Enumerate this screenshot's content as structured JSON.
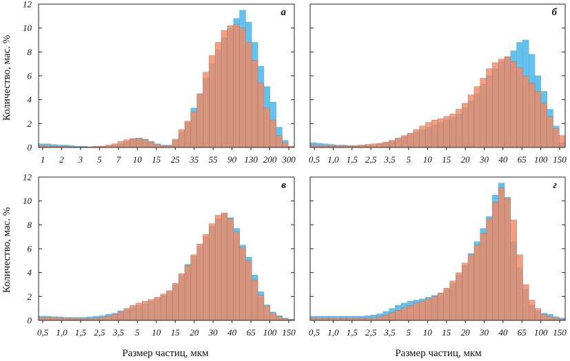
{
  "figure": {
    "ylabel": "Количество, мас. %",
    "xlabel": "Размер частиц, мкм"
  },
  "colors": {
    "blue": "#63c1ed",
    "orange": "#ef8a67",
    "overlap": "#b27a68"
  },
  "chart_data": [
    {
      "type": "bar",
      "panel": "а",
      "ylim": [
        0,
        12
      ],
      "yticks": [
        0,
        2,
        4,
        6,
        8,
        10,
        12
      ],
      "xticks": [
        "1",
        "2",
        "3",
        "5",
        "7",
        "10",
        "15",
        "25",
        "35",
        "55",
        "90",
        "130",
        "200",
        "300"
      ],
      "series": [
        {
          "color": "blue",
          "values": [
            0.3,
            0.3,
            0.25,
            0.2,
            0.2,
            0.15,
            0.1,
            0.1,
            0.05,
            0.05,
            0.05,
            0.1,
            0.2,
            0.3,
            0.5,
            0.7,
            0.8,
            0.7,
            0.5,
            0.3,
            0.2,
            0.2,
            0.6,
            1.3,
            2.1,
            3.3,
            4.5,
            5.8,
            7.0,
            8.2,
            9.2,
            10.0,
            10.8,
            11.5,
            10.5,
            8.8,
            6.8,
            5.1,
            3.8,
            1.7,
            0.6,
            0.1
          ]
        },
        {
          "color": "orange",
          "values": [
            0.15,
            0.15,
            0.1,
            0.1,
            0.1,
            0.05,
            0.05,
            0.05,
            0.05,
            0.1,
            0.1,
            0.2,
            0.3,
            0.5,
            0.65,
            0.75,
            0.75,
            0.65,
            0.45,
            0.25,
            0.15,
            0.15,
            0.7,
            1.5,
            2.2,
            3.0,
            4.5,
            6.3,
            7.7,
            8.8,
            9.8,
            10.2,
            10.3,
            10.0,
            8.8,
            7.3,
            5.4,
            3.3,
            2.3,
            1.0,
            0.4,
            0.1
          ]
        }
      ]
    },
    {
      "type": "bar",
      "panel": "б",
      "ylim": [
        0,
        12
      ],
      "yticks": [
        0,
        2,
        4,
        6,
        8,
        10,
        12
      ],
      "xticks": [
        "0,5",
        "1,0",
        "1,5",
        "2,5",
        "3,5",
        "5",
        "10",
        "15",
        "20",
        "30",
        "40",
        "65",
        "100",
        "150"
      ],
      "series": [
        {
          "color": "blue",
          "values": [
            0.4,
            0.35,
            0.3,
            0.25,
            0.2,
            0.2,
            0.15,
            0.15,
            0.15,
            0.2,
            0.2,
            0.3,
            0.4,
            0.55,
            0.7,
            0.9,
            1.1,
            1.3,
            1.5,
            1.7,
            1.9,
            2.1,
            2.3,
            2.5,
            2.8,
            3.3,
            3.9,
            4.5,
            5.3,
            6.0,
            6.6,
            7.2,
            7.6,
            8.1,
            8.8,
            9.0,
            7.8,
            6.0,
            4.7,
            3.2,
            1.8,
            0.4
          ]
        },
        {
          "color": "orange",
          "values": [
            0.2,
            0.15,
            0.15,
            0.15,
            0.15,
            0.15,
            0.15,
            0.15,
            0.2,
            0.25,
            0.3,
            0.35,
            0.45,
            0.6,
            0.8,
            1.0,
            1.2,
            1.5,
            1.8,
            2.1,
            2.3,
            2.4,
            2.6,
            2.8,
            3.2,
            3.7,
            4.4,
            5.1,
            5.8,
            6.6,
            7.1,
            7.4,
            7.6,
            7.2,
            6.7,
            6.0,
            5.4,
            4.7,
            3.7,
            2.6,
            1.6,
            1.0
          ]
        }
      ]
    },
    {
      "type": "bar",
      "panel": "в",
      "ylim": [
        0,
        12
      ],
      "yticks": [
        0,
        2,
        4,
        6,
        8,
        10,
        12
      ],
      "xticks": [
        "0,5",
        "1,0",
        "1,5",
        "2,5",
        "3,5",
        "5",
        "10",
        "15",
        "20",
        "30",
        "40",
        "65",
        "100",
        "150"
      ],
      "series": [
        {
          "color": "blue",
          "values": [
            0.35,
            0.35,
            0.3,
            0.3,
            0.25,
            0.25,
            0.25,
            0.25,
            0.3,
            0.35,
            0.4,
            0.5,
            0.6,
            0.8,
            0.95,
            1.1,
            1.25,
            1.4,
            1.6,
            1.8,
            2.1,
            2.4,
            3.0,
            3.8,
            4.7,
            5.4,
            6.2,
            7.0,
            7.9,
            8.5,
            8.9,
            8.6,
            7.7,
            6.3,
            5.3,
            3.8,
            2.4,
            1.3,
            0.7,
            0.4,
            0.2,
            0.1
          ]
        },
        {
          "color": "orange",
          "values": [
            0.25,
            0.25,
            0.25,
            0.2,
            0.2,
            0.2,
            0.15,
            0.15,
            0.15,
            0.2,
            0.25,
            0.35,
            0.5,
            0.7,
            1.0,
            1.25,
            1.45,
            1.6,
            1.75,
            1.95,
            2.2,
            2.5,
            3.1,
            3.9,
            4.6,
            5.5,
            6.4,
            7.2,
            8.1,
            8.8,
            9.0,
            8.5,
            7.4,
            6.1,
            5.0,
            3.4,
            2.1,
            1.2,
            0.6,
            0.3,
            0.15,
            0.05
          ]
        }
      ]
    },
    {
      "type": "bar",
      "panel": "г",
      "ylim": [
        0,
        12
      ],
      "yticks": [
        0,
        2,
        4,
        6,
        8,
        10,
        12
      ],
      "xticks": [
        "0,5",
        "1,0",
        "1,5",
        "2,5",
        "3,5",
        "5",
        "10",
        "15",
        "20",
        "30",
        "40",
        "65",
        "100",
        "150"
      ],
      "series": [
        {
          "color": "blue",
          "values": [
            0.35,
            0.35,
            0.35,
            0.35,
            0.35,
            0.35,
            0.35,
            0.35,
            0.35,
            0.4,
            0.45,
            0.55,
            0.75,
            1.0,
            1.25,
            1.45,
            1.6,
            1.7,
            1.8,
            1.95,
            2.1,
            2.3,
            2.6,
            3.1,
            3.8,
            4.6,
            5.6,
            6.6,
            7.7,
            8.7,
            10.5,
            11.5,
            10.3,
            6.6,
            4.4,
            2.6,
            1.3,
            0.8,
            0.6,
            0.5,
            0.3,
            0.2
          ]
        },
        {
          "color": "orange",
          "values": [
            0.2,
            0.2,
            0.2,
            0.2,
            0.2,
            0.2,
            0.2,
            0.2,
            0.2,
            0.2,
            0.2,
            0.3,
            0.45,
            0.65,
            0.85,
            1.05,
            1.25,
            1.45,
            1.6,
            1.8,
            2.0,
            2.3,
            2.7,
            3.3,
            4.0,
            4.8,
            5.5,
            6.3,
            7.3,
            8.5,
            9.9,
            11.1,
            10.2,
            8.4,
            5.5,
            3.0,
            1.7,
            1.0,
            0.5,
            0.3,
            0.2,
            0.1
          ]
        }
      ]
    }
  ]
}
